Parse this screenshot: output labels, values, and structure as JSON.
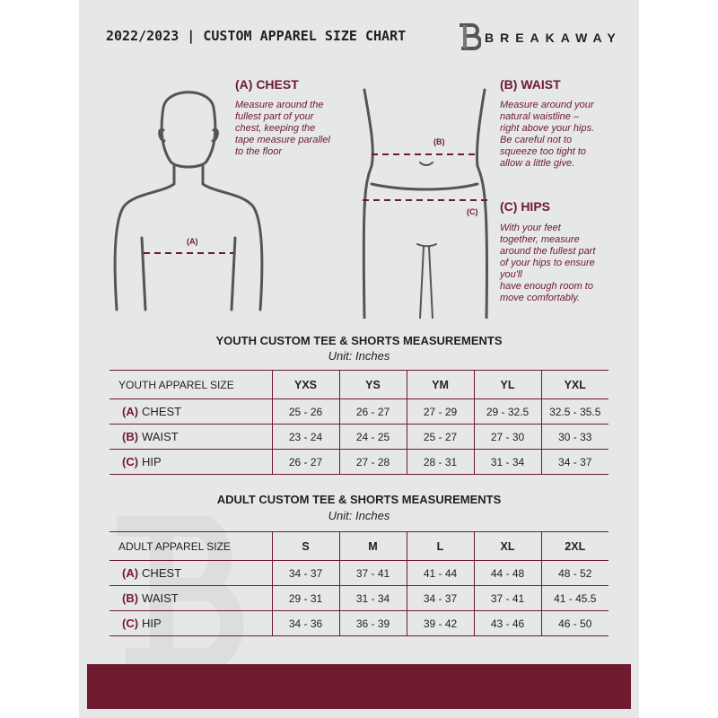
{
  "header": {
    "title": "2022/2023  |  CUSTOM APPAREL SIZE CHART",
    "brand": "BREAKAWAY",
    "logo_letter": "B"
  },
  "colors": {
    "accent": "#6e1a2f",
    "background": "#e6e7e8"
  },
  "chest": {
    "heading": "(A) CHEST",
    "text": [
      "Measure around the",
      "fullest part of your",
      "chest, keeping the",
      "tape measure parallel",
      "to the floor"
    ],
    "marker": "(A)"
  },
  "waist": {
    "heading": "(B) WAIST",
    "text": [
      "Measure around your",
      "natural waistline –",
      "right above your hips.",
      "Be careful not to",
      "squeeze too tight to",
      "allow a little give."
    ],
    "marker": "(B)"
  },
  "hips": {
    "heading": "(C) HIPS",
    "text": [
      "With your feet",
      "together, measure",
      "around the fullest part",
      "of your hips to ensure",
      "you'll",
      "have enough room to",
      "move comfortably."
    ],
    "marker": "(C)"
  },
  "youth": {
    "title": "YOUTH CUSTOM TEE & SHORTS MEASUREMENTS",
    "unit": "Unit: Inches",
    "size_label": "YOUTH APPAREL SIZE",
    "sizes": [
      "YXS",
      "YS",
      "YM",
      "YL",
      "YXL"
    ],
    "rows": [
      {
        "tag": "(A)",
        "label": "CHEST",
        "values": [
          "25 - 26",
          "26 - 27",
          "27 - 29",
          "29 - 32.5",
          "32.5 - 35.5"
        ]
      },
      {
        "tag": "(B)",
        "label": "WAIST",
        "values": [
          "23 - 24",
          "24 - 25",
          "25 - 27",
          "27 - 30",
          "30 - 33"
        ]
      },
      {
        "tag": "(C)",
        "label": "HIP",
        "values": [
          "26 - 27",
          "27 - 28",
          "28 - 31",
          "31 - 34",
          "34 - 37"
        ]
      }
    ]
  },
  "adult": {
    "title": "ADULT CUSTOM TEE & SHORTS MEASUREMENTS",
    "unit": "Unit: Inches",
    "size_label": "ADULT APPAREL SIZE",
    "sizes": [
      "S",
      "M",
      "L",
      "XL",
      "2XL"
    ],
    "rows": [
      {
        "tag": "(A)",
        "label": "CHEST",
        "values": [
          "34 - 37",
          "37 - 41",
          "41 - 44",
          "44 - 48",
          "48 - 52"
        ]
      },
      {
        "tag": "(B)",
        "label": "WAIST",
        "values": [
          "29 - 31",
          "31 - 34",
          "34 - 37",
          "37 - 41",
          "41 - 45.5"
        ]
      },
      {
        "tag": "(C)",
        "label": "HIP",
        "values": [
          "34 - 36",
          "36 - 39",
          "39 - 42",
          "43 - 46",
          "46 - 50"
        ]
      }
    ]
  }
}
